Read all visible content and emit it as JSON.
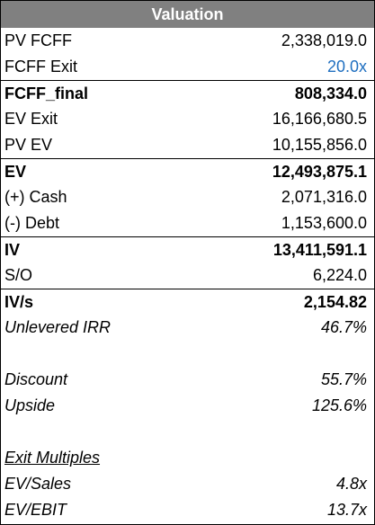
{
  "title": "Valuation",
  "colors": {
    "header_bg": "#808080",
    "header_text": "#ffffff",
    "input_blue": "#1f6fc0"
  },
  "rows": {
    "pv_fcff": {
      "label": "PV FCFF",
      "value": "2,338,019.0"
    },
    "fcff_exit": {
      "label": "FCFF Exit",
      "value": "20.0x"
    },
    "fcff_final": {
      "label": "FCFF_final",
      "value": "808,334.0"
    },
    "ev_exit": {
      "label": "EV Exit",
      "value": "16,166,680.5"
    },
    "pv_ev": {
      "label": "PV EV",
      "value": "10,155,856.0"
    },
    "ev": {
      "label": "EV",
      "value": "12,493,875.1"
    },
    "cash": {
      "label": "(+) Cash",
      "value": "2,071,316.0"
    },
    "debt": {
      "label": "(-) Debt",
      "value": "1,153,600.0"
    },
    "iv": {
      "label": "IV",
      "value": "13,411,591.1"
    },
    "so": {
      "label": "S/O",
      "value": "6,224.0"
    },
    "iv_per_share": {
      "label": "IV/s",
      "value": "2,154.82"
    },
    "unlevered_irr": {
      "label": "Unlevered IRR",
      "value": "46.7%"
    },
    "discount": {
      "label": "Discount",
      "value": "55.7%"
    },
    "upside": {
      "label": "Upside",
      "value": "125.6%"
    },
    "exit_multiples": {
      "label": "Exit Multiples"
    },
    "ev_sales": {
      "label": "EV/Sales",
      "value": "4.8x"
    },
    "ev_ebit": {
      "label": "EV/EBIT",
      "value": "13.7x"
    }
  }
}
